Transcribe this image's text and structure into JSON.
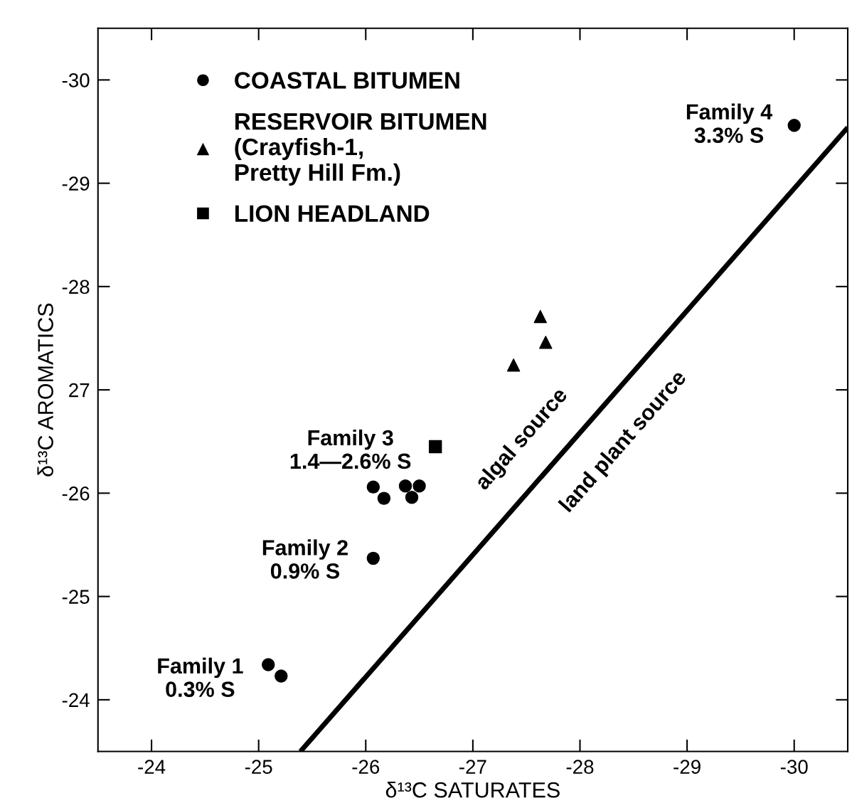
{
  "chart_data": {
    "type": "scatter",
    "xlabel": "δ¹³C SATURATES",
    "ylabel": "δ¹³C AROMATICS",
    "xlim": [
      -23.5,
      -30.5
    ],
    "ylim": [
      -23.5,
      -30.5
    ],
    "xticks": [
      -24,
      -25,
      -26,
      -27,
      -28,
      -29,
      -30
    ],
    "yticks": [
      -24,
      -25,
      -26,
      {
        "value": -27,
        "label": "27"
      },
      -28,
      -29,
      -30
    ],
    "legend": "top left",
    "grid": false,
    "series": [
      {
        "name": "COASTAL BITUMEN",
        "color": "#000000",
        "marker": "circle",
        "x": [
          -30.0,
          -26.07,
          -26.17,
          -26.37,
          -26.5,
          -26.43,
          -26.07,
          -25.09,
          -25.21
        ],
        "values": [
          -29.56,
          -26.06,
          -25.95,
          -26.07,
          -26.07,
          -25.96,
          -25.37,
          -24.34,
          -24.23
        ]
      },
      {
        "name": "RESERVOIR BITUMEN\n(Crayfish-1,\nPretty Hill Fm.)",
        "color": "#000000",
        "marker": "triangle",
        "x": [
          -27.63,
          -27.68,
          -27.38
        ],
        "values": [
          -27.71,
          -27.46,
          -27.24
        ]
      },
      {
        "name": "LION HEADLAND",
        "color": "#000000",
        "marker": "square",
        "x": [
          -26.65
        ],
        "values": [
          -26.45
        ]
      },
      {
        "type": "line",
        "color": "#000000",
        "line_style": "solid",
        "x": [
          -25.39,
          -30.5
        ],
        "values": [
          -23.5,
          -29.54
        ]
      }
    ],
    "annotations": [
      {
        "text": "Family 1\n0.3% S",
        "x": -25.09,
        "y": -24.34
      },
      {
        "text": "Family 2\n0.9% S",
        "x": -26.07,
        "y": -25.37
      },
      {
        "text": "Family 3\n1.4—2.6% S",
        "x": -26.5,
        "y": -26.07
      },
      {
        "text": "Family 4\n3.3% S",
        "x": -30.0,
        "y": -29.56
      },
      {
        "text": "algal source",
        "x": -27.72,
        "y": -26.25
      },
      {
        "text": "land plant source",
        "x": -28.15,
        "y": -26.76
      }
    ]
  }
}
